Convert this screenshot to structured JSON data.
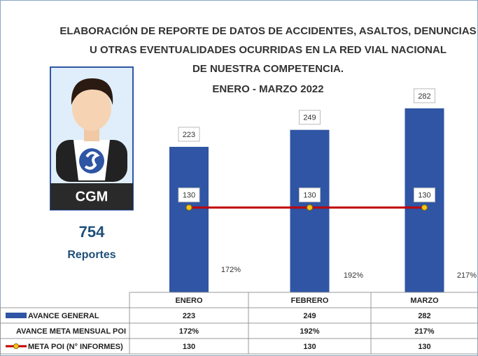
{
  "chart_data": {
    "type": "bar",
    "title": [
      "ELABORACIÓN DE REPORTE DE DATOS DE ACCIDENTES, ASALTOS, DENUNCIAS",
      "U OTRAS EVENTUALIDADES OCURRIDAS EN LA RED VIAL NACIONAL",
      "DE NUESTRA COMPETENCIA."
    ],
    "subtitle": "ENERO - MARZO 2022",
    "categories": [
      "ENERO",
      "FEBRERO",
      "MARZO"
    ],
    "series": [
      {
        "name": "AVANCE GENERAL",
        "kind": "bar",
        "color": "#2f55a4",
        "values": [
          223,
          249,
          282
        ]
      },
      {
        "name": "AVANCE META MENSUAL POI",
        "kind": "label",
        "values": [
          172,
          192,
          217
        ],
        "value_labels": [
          "172%",
          "192%",
          "217%"
        ]
      },
      {
        "name": "META POI (N° INFORMES)",
        "kind": "line",
        "color": "#c00000",
        "marker_color": "#f5c518",
        "values": [
          130,
          130,
          130
        ]
      }
    ]
  },
  "summary": {
    "badge": "CGM",
    "value": 754,
    "label": "Reportes"
  }
}
